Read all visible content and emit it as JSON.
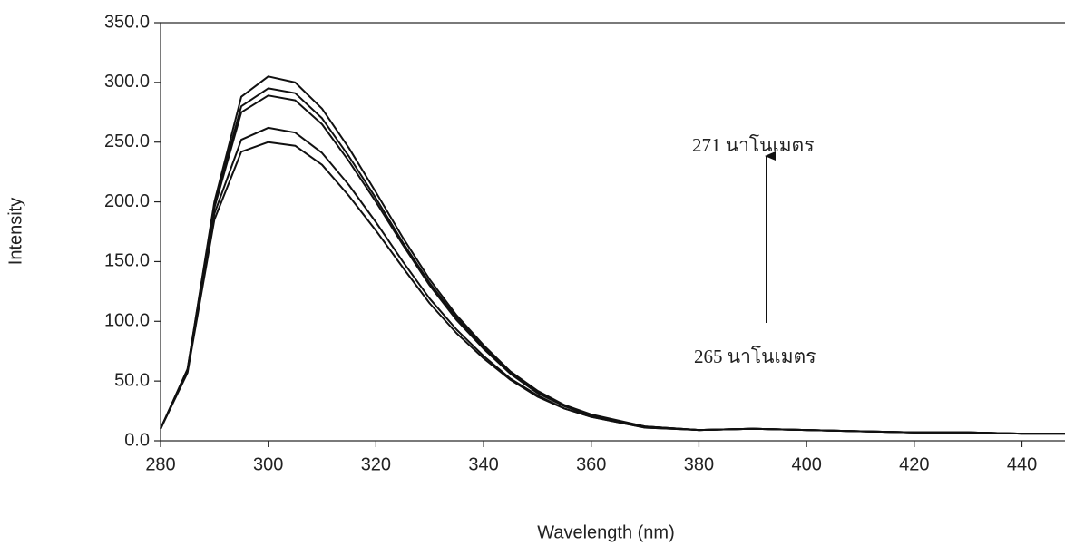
{
  "chart_data": {
    "type": "line",
    "x_label": "Wavelength (nm)",
    "y_label": "Intensity",
    "x": [
      280,
      285,
      290,
      295,
      300,
      305,
      310,
      315,
      320,
      325,
      330,
      335,
      340,
      345,
      350,
      355,
      360,
      370,
      380,
      390,
      400,
      410,
      420,
      430,
      440,
      448
    ],
    "series": [
      {
        "color": "#111111",
        "values": [
          10,
          60,
          200,
          288,
          305,
          300,
          278,
          245,
          208,
          170,
          135,
          105,
          80,
          58,
          42,
          30,
          22,
          12,
          9,
          10,
          9,
          8,
          7,
          7,
          6,
          6
        ]
      },
      {
        "color": "#111111",
        "values": [
          10,
          60,
          198,
          280,
          295,
          291,
          270,
          238,
          203,
          166,
          132,
          103,
          78,
          57,
          41,
          29,
          21,
          12,
          9,
          10,
          9,
          8,
          7,
          7,
          6,
          6
        ]
      },
      {
        "color": "#111111",
        "values": [
          10,
          58,
          195,
          275,
          289,
          285,
          265,
          234,
          200,
          164,
          130,
          101,
          77,
          56,
          40,
          29,
          21,
          12,
          9,
          10,
          9,
          8,
          7,
          7,
          6,
          6
        ]
      },
      {
        "color": "#111111",
        "values": [
          10,
          58,
          190,
          252,
          262,
          258,
          241,
          214,
          183,
          150,
          119,
          93,
          71,
          52,
          38,
          27,
          20,
          11,
          9,
          10,
          9,
          8,
          7,
          7,
          6,
          6
        ]
      },
      {
        "color": "#111111",
        "values": [
          10,
          57,
          185,
          242,
          250,
          247,
          231,
          205,
          176,
          145,
          115,
          90,
          69,
          51,
          37,
          27,
          20,
          11,
          9,
          10,
          9,
          8,
          7,
          7,
          6,
          6
        ]
      }
    ],
    "xlim": [
      280,
      448
    ],
    "ylim": [
      0,
      350
    ],
    "xticks": [
      280,
      300,
      320,
      340,
      360,
      380,
      400,
      420,
      440
    ],
    "yticks": [
      {
        "value": 0,
        "label": "0.0"
      },
      {
        "value": 50,
        "label": "50.0"
      },
      {
        "value": 100,
        "label": "100.0"
      },
      {
        "value": 150,
        "label": "150.0"
      },
      {
        "value": 200,
        "label": "200.0"
      },
      {
        "value": 250,
        "label": "250.0"
      },
      {
        "value": 300,
        "label": "300.0"
      },
      {
        "value": 350,
        "label": "350.0"
      }
    ],
    "annotations": [
      "271 นาโนเมตร",
      "265 นาโนเมตร"
    ]
  }
}
